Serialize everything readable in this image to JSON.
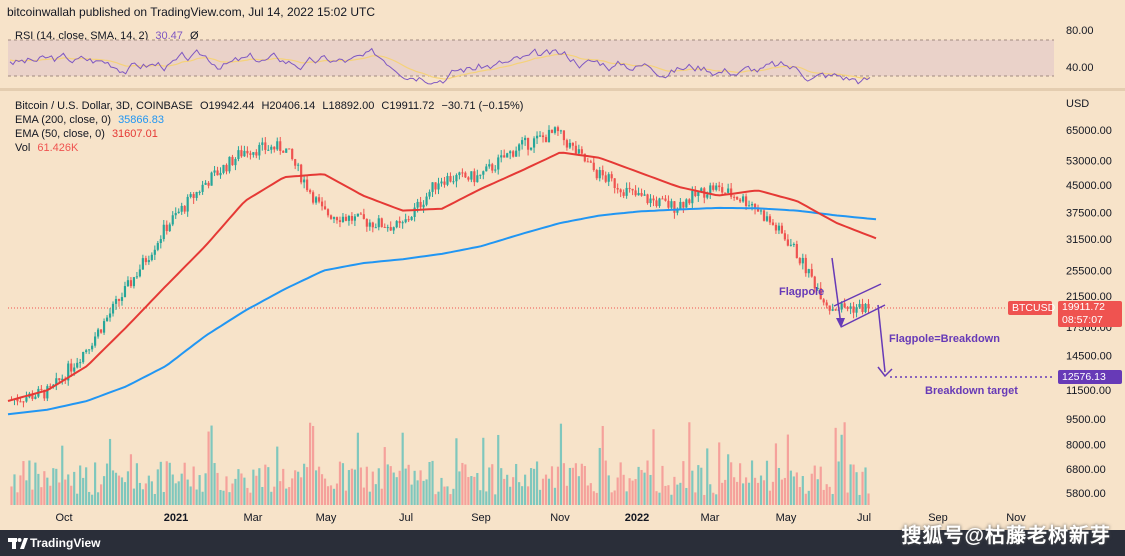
{
  "header": {
    "published": "bitcoinwallah published on TradingView.com, Jul 14, 2022 15:02 UTC"
  },
  "rsi": {
    "label": "RSI (14, close, SMA, 14, 2)",
    "value": "30.47",
    "extra": "Ø",
    "levels": [
      "80.00",
      "40.00"
    ],
    "line_color": "#7e57c2",
    "sma_color": "#f5d27a"
  },
  "main_legend": {
    "symbol": "Bitcoin / U.S. Dollar, 3D, COINBASE",
    "open": "O19942.44",
    "high": "H20406.14",
    "low": "L18892.00",
    "close": "C19911.72",
    "change": "−30.71 (−0.15%)",
    "ema200_label": "EMA (200, close, 0)",
    "ema200_value": "35866.83",
    "ema50_label": "EMA (50, close, 0)",
    "ema50_value": "31607.01",
    "vol_label": "Vol",
    "vol_value": "61.426K"
  },
  "price_axis": {
    "unit": "USD",
    "ticks": [
      "65000.00",
      "53000.00",
      "45000.00",
      "37500.00",
      "31500.00",
      "25500.00",
      "21500.00",
      "17500.00",
      "14500.00",
      "11500.00",
      "9500.00",
      "8000.00",
      "6800.00",
      "5800.00"
    ]
  },
  "tags": {
    "symbol": "BTCUSD",
    "price": "19911.72",
    "countdown": "08:57:07",
    "target": "12576.13"
  },
  "time_axis": {
    "ticks": [
      "Oct",
      "2021",
      "Mar",
      "May",
      "Jul",
      "Sep",
      "Nov",
      "2022",
      "Mar",
      "May",
      "Jul",
      "Sep",
      "Nov"
    ]
  },
  "annotations": {
    "flagpole": "Flagpole",
    "breakdown": "Flagpole=Breakdown",
    "target": "Breakdown target"
  },
  "footer": {
    "brand": "TradingView",
    "watermark": "搜狐号@枯藤老树新芽"
  },
  "colors": {
    "background": "#f7e3c9",
    "up": "#26a69a",
    "down": "#ef5350",
    "ema200": "#2196f3",
    "ema50": "#e53935",
    "annotation": "#673ab7"
  },
  "chart_data": {
    "type": "line",
    "title": "Bitcoin / U.S. Dollar, 3D, COINBASE",
    "ylabel": "USD",
    "y_scale": "log",
    "ylim": [
      5200,
      80000
    ],
    "x": [
      "2020-09",
      "2020-10",
      "2020-11",
      "2020-12",
      "2021-01",
      "2021-02",
      "2021-03",
      "2021-04",
      "2021-05",
      "2021-06",
      "2021-07",
      "2021-08",
      "2021-09",
      "2021-10",
      "2021-11",
      "2021-12",
      "2022-01",
      "2022-02",
      "2022-03",
      "2022-04",
      "2022-05",
      "2022-06",
      "2022-07"
    ],
    "series": [
      {
        "name": "EMA (200, close, 0)",
        "values": [
          9800,
          10100,
          10700,
          11800,
          13500,
          16500,
          19500,
          22500,
          25500,
          26800,
          27500,
          28500,
          30000,
          32500,
          35000,
          36800,
          37800,
          38300,
          38700,
          38600,
          38000,
          36800,
          35866.83
        ]
      },
      {
        "name": "EMA (50, close, 0)",
        "values": [
          10700,
          11500,
          13500,
          17500,
          23000,
          30000,
          40500,
          47500,
          48500,
          42000,
          38000,
          38500,
          44000,
          49500,
          56000,
          54000,
          49000,
          44500,
          42000,
          43500,
          40500,
          35000,
          31607.01
        ]
      },
      {
        "name": "Price (close)",
        "values": [
          10800,
          11400,
          15600,
          23000,
          34500,
          46000,
          57000,
          58000,
          37500,
          35500,
          34000,
          47000,
          47500,
          58000,
          64000,
          49000,
          42000,
          39000,
          44500,
          40000,
          30500,
          20000,
          19911.72
        ]
      }
    ],
    "annotations": [
      {
        "text": "Flagpole"
      },
      {
        "text": "Flagpole=Breakdown"
      },
      {
        "text": "Breakdown target",
        "y": 12576.13
      }
    ],
    "current_price": 19911.72,
    "grid": false,
    "legend": "top-left"
  }
}
